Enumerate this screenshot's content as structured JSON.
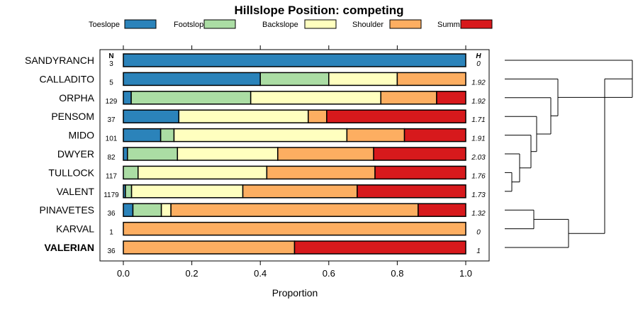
{
  "chart_data": {
    "type": "bar",
    "orientation": "horizontal",
    "stacked": true,
    "title": "Hillslope Position: competing",
    "xlabel": "Proportion",
    "ylabel": "",
    "xlim": [
      0,
      1
    ],
    "x_ticks": [
      "0.0",
      "0.2",
      "0.4",
      "0.6",
      "0.8",
      "1.0"
    ],
    "x_tick_values": [
      0,
      0.2,
      0.4,
      0.6,
      0.8,
      1.0
    ],
    "n_header": "N",
    "h_header": "H",
    "legend": [
      {
        "name": "Toeslope",
        "color": "#2B83BA"
      },
      {
        "name": "Footslope",
        "color": "#ABDDA4"
      },
      {
        "name": "Backslope",
        "color": "#FFFFBF"
      },
      {
        "name": "Shoulder",
        "color": "#FDAE61"
      },
      {
        "name": "Summit",
        "color": "#D7191C"
      }
    ],
    "rows": [
      {
        "name": "SANDYRANCH",
        "n": "3",
        "h": "0",
        "bold": false,
        "values": [
          1.0,
          0,
          0,
          0,
          0
        ]
      },
      {
        "name": "CALLADITO",
        "n": "5",
        "h": "1.92",
        "bold": false,
        "values": [
          0.4,
          0.2,
          0.2,
          0.2,
          0
        ]
      },
      {
        "name": "ORPHA",
        "n": "129",
        "h": "1.92",
        "bold": false,
        "values": [
          0.023,
          0.349,
          0.38,
          0.163,
          0.085
        ]
      },
      {
        "name": "PENSOM",
        "n": "37",
        "h": "1.71",
        "bold": false,
        "values": [
          0.162,
          0,
          0.378,
          0.054,
          0.406
        ]
      },
      {
        "name": "MIDO",
        "n": "101",
        "h": "1.91",
        "bold": false,
        "values": [
          0.109,
          0.039,
          0.505,
          0.168,
          0.179
        ]
      },
      {
        "name": "DWYER",
        "n": "82",
        "h": "2.03",
        "bold": false,
        "values": [
          0.012,
          0.146,
          0.293,
          0.28,
          0.269
        ]
      },
      {
        "name": "TULLOCK",
        "n": "117",
        "h": "1.76",
        "bold": false,
        "values": [
          0,
          0.043,
          0.376,
          0.316,
          0.265
        ]
      },
      {
        "name": "VALENT",
        "n": "1179",
        "h": "1.73",
        "bold": false,
        "values": [
          0.006,
          0.018,
          0.325,
          0.334,
          0.317
        ]
      },
      {
        "name": "PINAVETES",
        "n": "36",
        "h": "1.32",
        "bold": false,
        "values": [
          0.028,
          0.083,
          0.028,
          0.722,
          0.139
        ]
      },
      {
        "name": "KARVAL",
        "n": "1",
        "h": "0",
        "bold": false,
        "values": [
          0,
          0,
          0,
          1.0,
          0
        ]
      },
      {
        "name": "VALERIAN",
        "n": "36",
        "h": "1",
        "bold": true,
        "values": [
          0,
          0,
          0,
          0.5,
          0.5
        ]
      }
    ]
  }
}
